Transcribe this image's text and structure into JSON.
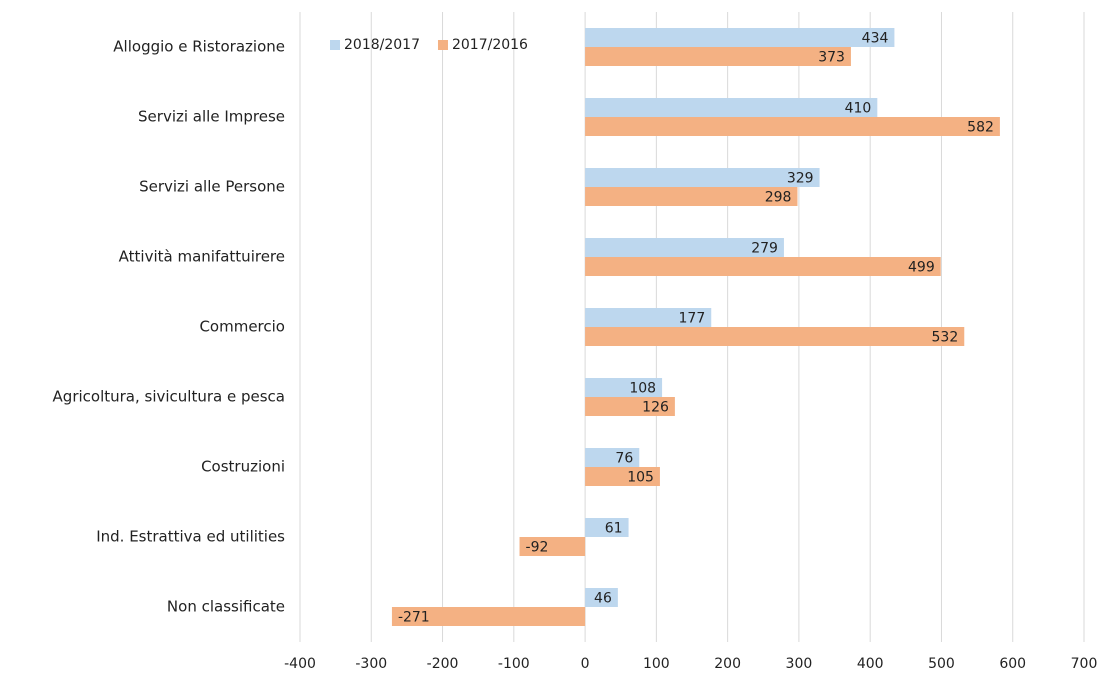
{
  "chart_data": {
    "type": "hbar",
    "categories": [
      "Alloggio e Ristorazione",
      "Servizi alle Imprese",
      "Servizi alle Persone",
      "Attività manifattuirere",
      "Commercio",
      "Agricoltura, sivicultura e pesca",
      "Costruzioni",
      "Ind. Estrattiva ed utilities",
      "Non classificate"
    ],
    "series": [
      {
        "name": "2018/2017",
        "color": "#bdd7ee",
        "values": [
          434,
          410,
          329,
          279,
          177,
          108,
          76,
          61,
          46
        ]
      },
      {
        "name": "2017/2016",
        "color": "#f4b183",
        "values": [
          373,
          582,
          298,
          499,
          532,
          126,
          105,
          -92,
          -271
        ]
      }
    ],
    "xlim": [
      -400,
      700
    ],
    "xticks": [
      -400,
      -300,
      -200,
      -100,
      0,
      100,
      200,
      300,
      400,
      500,
      600,
      700
    ],
    "grid": true,
    "legend": "top-left"
  }
}
